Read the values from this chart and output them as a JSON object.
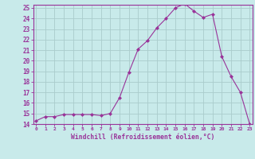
{
  "x": [
    0,
    1,
    2,
    3,
    4,
    5,
    6,
    7,
    8,
    9,
    10,
    11,
    12,
    13,
    14,
    15,
    16,
    17,
    18,
    19,
    20,
    21,
    22,
    23
  ],
  "y": [
    14.3,
    14.7,
    14.7,
    14.9,
    14.9,
    14.9,
    14.9,
    14.8,
    15.0,
    16.5,
    18.9,
    21.1,
    21.9,
    23.1,
    24.0,
    25.0,
    25.4,
    24.7,
    24.1,
    24.4,
    20.4,
    18.5,
    17.0,
    14.0
  ],
  "line_color": "#993399",
  "marker": "D",
  "marker_size": 2.0,
  "bg_color": "#c8eaea",
  "grid_color": "#aacccc",
  "tick_color": "#993399",
  "label_color": "#993399",
  "xlabel": "Windchill (Refroidissement éolien,°C)",
  "ylim_min": 14,
  "ylim_max": 25,
  "xlim_min": 0,
  "xlim_max": 23
}
